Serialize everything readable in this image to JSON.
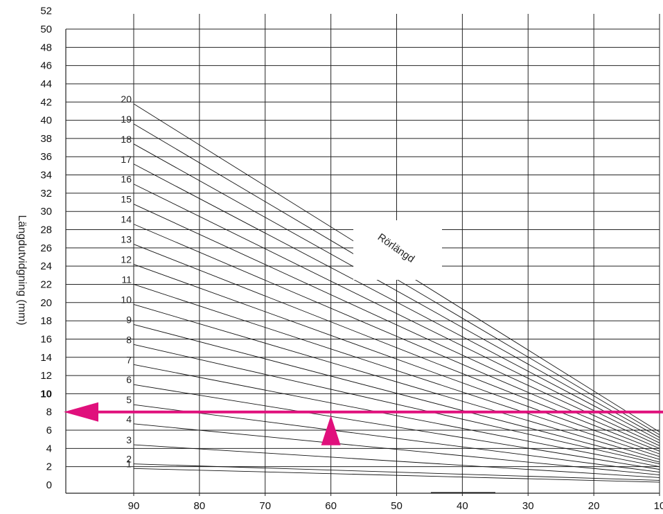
{
  "chart_data": {
    "type": "line",
    "title": "",
    "xlabel": "",
    "ylabel": "Längdutvidgning (mm)",
    "annotation": "Rörlängd",
    "xlim": [
      100,
      0
    ],
    "ylim": [
      0,
      52
    ],
    "x_ticks": [
      "90",
      "80",
      "70",
      "60",
      "50",
      "40",
      "30",
      "20",
      "10"
    ],
    "y_ticks": [
      "0",
      "2",
      "4",
      "6",
      "8",
      "10",
      "12",
      "14",
      "16",
      "18",
      "20",
      "22",
      "24",
      "26",
      "28",
      "30",
      "32",
      "34",
      "36",
      "38",
      "40",
      "42",
      "44",
      "46",
      "48",
      "50",
      "52"
    ],
    "y_tick_bold": "10",
    "series_note": "Each line runs from x=90 to x=10; labels 1–20 are pipe lengths",
    "series": [
      {
        "name": "1",
        "x": [
          90,
          10
        ],
        "y": [
          1.8,
          0.3
        ]
      },
      {
        "name": "2",
        "x": [
          90,
          10
        ],
        "y": [
          2.3,
          0.5
        ]
      },
      {
        "name": "3",
        "x": [
          90,
          10
        ],
        "y": [
          4.4,
          0.8
        ]
      },
      {
        "name": "4",
        "x": [
          90,
          10
        ],
        "y": [
          6.7,
          1.1
        ]
      },
      {
        "name": "5",
        "x": [
          90,
          10
        ],
        "y": [
          8.8,
          1.4
        ]
      },
      {
        "name": "6",
        "x": [
          90,
          10
        ],
        "y": [
          11.0,
          1.7
        ]
      },
      {
        "name": "7",
        "x": [
          90,
          10
        ],
        "y": [
          13.2,
          2.0
        ]
      },
      {
        "name": "8",
        "x": [
          90,
          10
        ],
        "y": [
          15.4,
          2.3
        ]
      },
      {
        "name": "9",
        "x": [
          90,
          10
        ],
        "y": [
          17.6,
          2.5
        ]
      },
      {
        "name": "10",
        "x": [
          90,
          10
        ],
        "y": [
          19.8,
          2.8
        ]
      },
      {
        "name": "11",
        "x": [
          90,
          10
        ],
        "y": [
          22.0,
          3.1
        ]
      },
      {
        "name": "12",
        "x": [
          90,
          10
        ],
        "y": [
          24.2,
          3.4
        ]
      },
      {
        "name": "13",
        "x": [
          90,
          10
        ],
        "y": [
          26.4,
          3.7
        ]
      },
      {
        "name": "14",
        "x": [
          90,
          10
        ],
        "y": [
          28.6,
          4.0
        ]
      },
      {
        "name": "15",
        "x": [
          90,
          10
        ],
        "y": [
          30.8,
          4.3
        ]
      },
      {
        "name": "16",
        "x": [
          90,
          10
        ],
        "y": [
          33.0,
          4.6
        ]
      },
      {
        "name": "17",
        "x": [
          90,
          10
        ],
        "y": [
          35.2,
          4.9
        ]
      },
      {
        "name": "18",
        "x": [
          90,
          10
        ],
        "y": [
          37.4,
          5.2
        ]
      },
      {
        "name": "19",
        "x": [
          90,
          10
        ],
        "y": [
          39.6,
          5.5
        ]
      },
      {
        "name": "20",
        "x": [
          90,
          10
        ],
        "y": [
          41.8,
          5.8
        ]
      }
    ],
    "readout": {
      "x": 60,
      "y": 8,
      "color": "#e0107c"
    },
    "grid": true
  }
}
